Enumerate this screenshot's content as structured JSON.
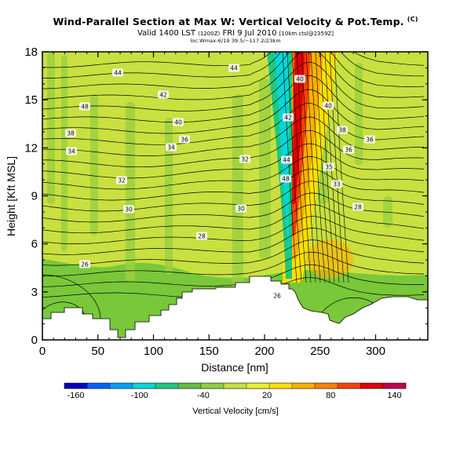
{
  "header": {
    "title": "Wind-Parallel Section at Max W: Vertical Velocity & Pot.Temp.",
    "title_tag": "(C)",
    "valid_line_a": "Valid 1400 LST",
    "valid_line_b": "(1200Z)",
    "valid_line_c": "FRI 9 Jul 2010",
    "valid_line_d": "[10km ctsl@2359Z]",
    "location_line": "loc:Wmax-6/19 39.5/−117.2/23km"
  },
  "chart_data": {
    "type": "heatmap",
    "title": "Wind-Parallel Section at Max W: Vertical Velocity & Pot.Temp.",
    "xlabel": "Distance [nm]",
    "ylabel": "Height [Kft MSL]",
    "xlim": [
      0,
      347
    ],
    "ylim": [
      0,
      18
    ],
    "x_ticks": [
      "0",
      "50",
      "100",
      "150",
      "200",
      "250",
      "300"
    ],
    "y_ticks": [
      "0",
      "3",
      "6",
      "9",
      "12",
      "15",
      "18"
    ],
    "colorbar": {
      "label": "Vertical Velocity [cm/s]",
      "tick_labels": [
        "-160",
        "-100",
        "-40",
        "20",
        "80",
        "140"
      ],
      "colors": [
        "#0000c0",
        "#0060ff",
        "#00a0ff",
        "#00d8d8",
        "#20c880",
        "#60c040",
        "#90d040",
        "#c8e040",
        "#e8f030",
        "#ffe000",
        "#ffb000",
        "#ff8000",
        "#ff4000",
        "#e00000",
        "#c0004a"
      ]
    },
    "theta_contour_labels": [
      "44",
      "44",
      "48",
      "42",
      "40",
      "40",
      "38",
      "36",
      "36",
      "34",
      "34",
      "32",
      "32",
      "30",
      "30",
      "28",
      "26",
      "26",
      "28",
      "33",
      "35",
      "36",
      "38",
      "40",
      "42",
      "44",
      "48"
    ],
    "max_updraft": {
      "distance_nm": 232,
      "height_kft": 17
    },
    "max_downdraft": {
      "distance_nm": 218,
      "height_kft": 12
    }
  }
}
